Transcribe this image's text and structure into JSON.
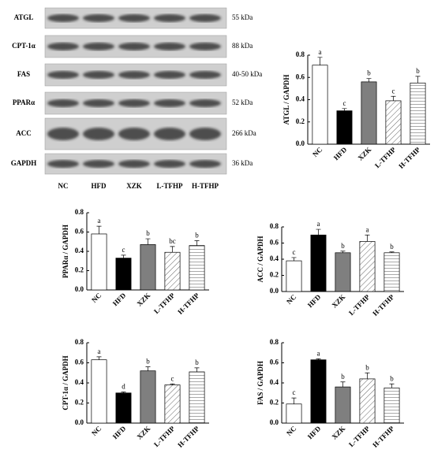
{
  "blot": {
    "proteins": [
      "ATGL",
      "CPT-1α",
      "FAS",
      "PPARα",
      "ACC",
      "GAPDH"
    ],
    "sizes": [
      "55 kDa",
      "88 kDa",
      "40-50 kDa",
      "52 kDa",
      "266 kDa",
      "36 kDa"
    ],
    "lanes": [
      "NC",
      "HFD",
      "XZK",
      "L-TFHP",
      "H-TFHP"
    ]
  },
  "chart_data": [
    {
      "type": "bar",
      "ylabel": "ATGL / GAPDH",
      "categories": [
        "NC",
        "HFD",
        "XZK",
        "L-TFHP",
        "H-TFHP"
      ],
      "values": [
        0.71,
        0.3,
        0.56,
        0.39,
        0.55
      ],
      "errors": [
        0.07,
        0.02,
        0.03,
        0.04,
        0.06
      ],
      "letters": [
        "a",
        "c",
        "b",
        "c",
        "b"
      ],
      "colors": [
        "#ffffff",
        "#000000",
        "#7f7f7f",
        "#ffffff",
        "#ffffff"
      ],
      "hatch": [
        null,
        null,
        null,
        "diagonal",
        "horizontal"
      ],
      "ylim": [
        0,
        0.8
      ],
      "yticks": [
        {
          "value": 0,
          "label": "0.0"
        },
        {
          "value": 0.2,
          "label": "0.2"
        },
        {
          "value": 0.4,
          "label": "0.4"
        },
        {
          "value": 0.6,
          "label": "0.6"
        },
        {
          "value": 0.8,
          "label": "0.8"
        }
      ]
    },
    {
      "type": "bar",
      "ylabel": "PPARα / GAPDH",
      "categories": [
        "NC",
        "HFD",
        "XZK",
        "L-TFHP",
        "H-TFHP"
      ],
      "values": [
        0.58,
        0.33,
        0.47,
        0.39,
        0.46
      ],
      "errors": [
        0.08,
        0.03,
        0.06,
        0.06,
        0.05
      ],
      "letters": [
        "a",
        "c",
        "b",
        "bc",
        "b"
      ],
      "colors": [
        "#ffffff",
        "#000000",
        "#7f7f7f",
        "#ffffff",
        "#ffffff"
      ],
      "hatch": [
        null,
        null,
        null,
        "diagonal",
        "horizontal"
      ],
      "ylim": [
        0,
        0.8
      ],
      "yticks": [
        {
          "value": 0,
          "label": "0.0"
        },
        {
          "value": 0.2,
          "label": "0.2"
        },
        {
          "value": 0.4,
          "label": "0.4"
        },
        {
          "value": 0.6,
          "label": "0.6"
        },
        {
          "value": 0.8,
          "label": "0.8"
        }
      ]
    },
    {
      "type": "bar",
      "ylabel": "ACC / GAPDH",
      "categories": [
        "NC",
        "HFD",
        "XZK",
        "L-TFHP",
        "H-TFHP"
      ],
      "values": [
        0.38,
        0.7,
        0.48,
        0.62,
        0.48
      ],
      "errors": [
        0.04,
        0.07,
        0.02,
        0.08,
        0.01
      ],
      "letters": [
        "c",
        "a",
        "b",
        "a",
        "b"
      ],
      "colors": [
        "#ffffff",
        "#000000",
        "#7f7f7f",
        "#ffffff",
        "#ffffff"
      ],
      "hatch": [
        null,
        null,
        null,
        "diagonal",
        "horizontal"
      ],
      "ylim": [
        0,
        0.8
      ],
      "yticks": [
        {
          "value": 0,
          "label": "0.0"
        },
        {
          "value": 0.2,
          "label": "0.2"
        },
        {
          "value": 0.4,
          "label": "0.4"
        },
        {
          "value": 0.6,
          "label": "0.6"
        },
        {
          "value": 0.8,
          "label": "0.8"
        }
      ]
    },
    {
      "type": "bar",
      "ylabel": "CPT-1α / GAPDH",
      "categories": [
        "NC",
        "HFD",
        "XZK",
        "L-TFHP",
        "H-TFHP"
      ],
      "values": [
        0.63,
        0.3,
        0.52,
        0.38,
        0.51
      ],
      "errors": [
        0.03,
        0.01,
        0.04,
        0.01,
        0.04
      ],
      "letters": [
        "a",
        "d",
        "b",
        "c",
        "b"
      ],
      "colors": [
        "#ffffff",
        "#000000",
        "#7f7f7f",
        "#ffffff",
        "#ffffff"
      ],
      "hatch": [
        null,
        null,
        null,
        "diagonal",
        "horizontal"
      ],
      "ylim": [
        0,
        0.8
      ],
      "yticks": [
        {
          "value": 0,
          "label": "0.0"
        },
        {
          "value": 0.2,
          "label": "0.2"
        },
        {
          "value": 0.4,
          "label": "0.4"
        },
        {
          "value": 0.6,
          "label": "0.6"
        },
        {
          "value": 0.8,
          "label": "0.8"
        }
      ]
    },
    {
      "type": "bar",
      "ylabel": "FAS / GAPDH",
      "categories": [
        "NC",
        "HFD",
        "XZK",
        "L-TFHP",
        "H-TFHP"
      ],
      "values": [
        0.19,
        0.63,
        0.36,
        0.44,
        0.35
      ],
      "errors": [
        0.06,
        0.01,
        0.05,
        0.06,
        0.04
      ],
      "letters": [
        "c",
        "a",
        "b",
        "b",
        "b"
      ],
      "colors": [
        "#ffffff",
        "#000000",
        "#7f7f7f",
        "#ffffff",
        "#ffffff"
      ],
      "hatch": [
        null,
        null,
        null,
        "diagonal",
        "horizontal"
      ],
      "ylim": [
        0,
        0.8
      ],
      "yticks": [
        {
          "value": 0,
          "label": "0.0"
        },
        {
          "value": 0.2,
          "label": "0.2"
        },
        {
          "value": 0.4,
          "label": "0.4"
        },
        {
          "value": 0.6,
          "label": "0.6"
        },
        {
          "value": 0.8,
          "label": "0.8"
        }
      ]
    }
  ]
}
